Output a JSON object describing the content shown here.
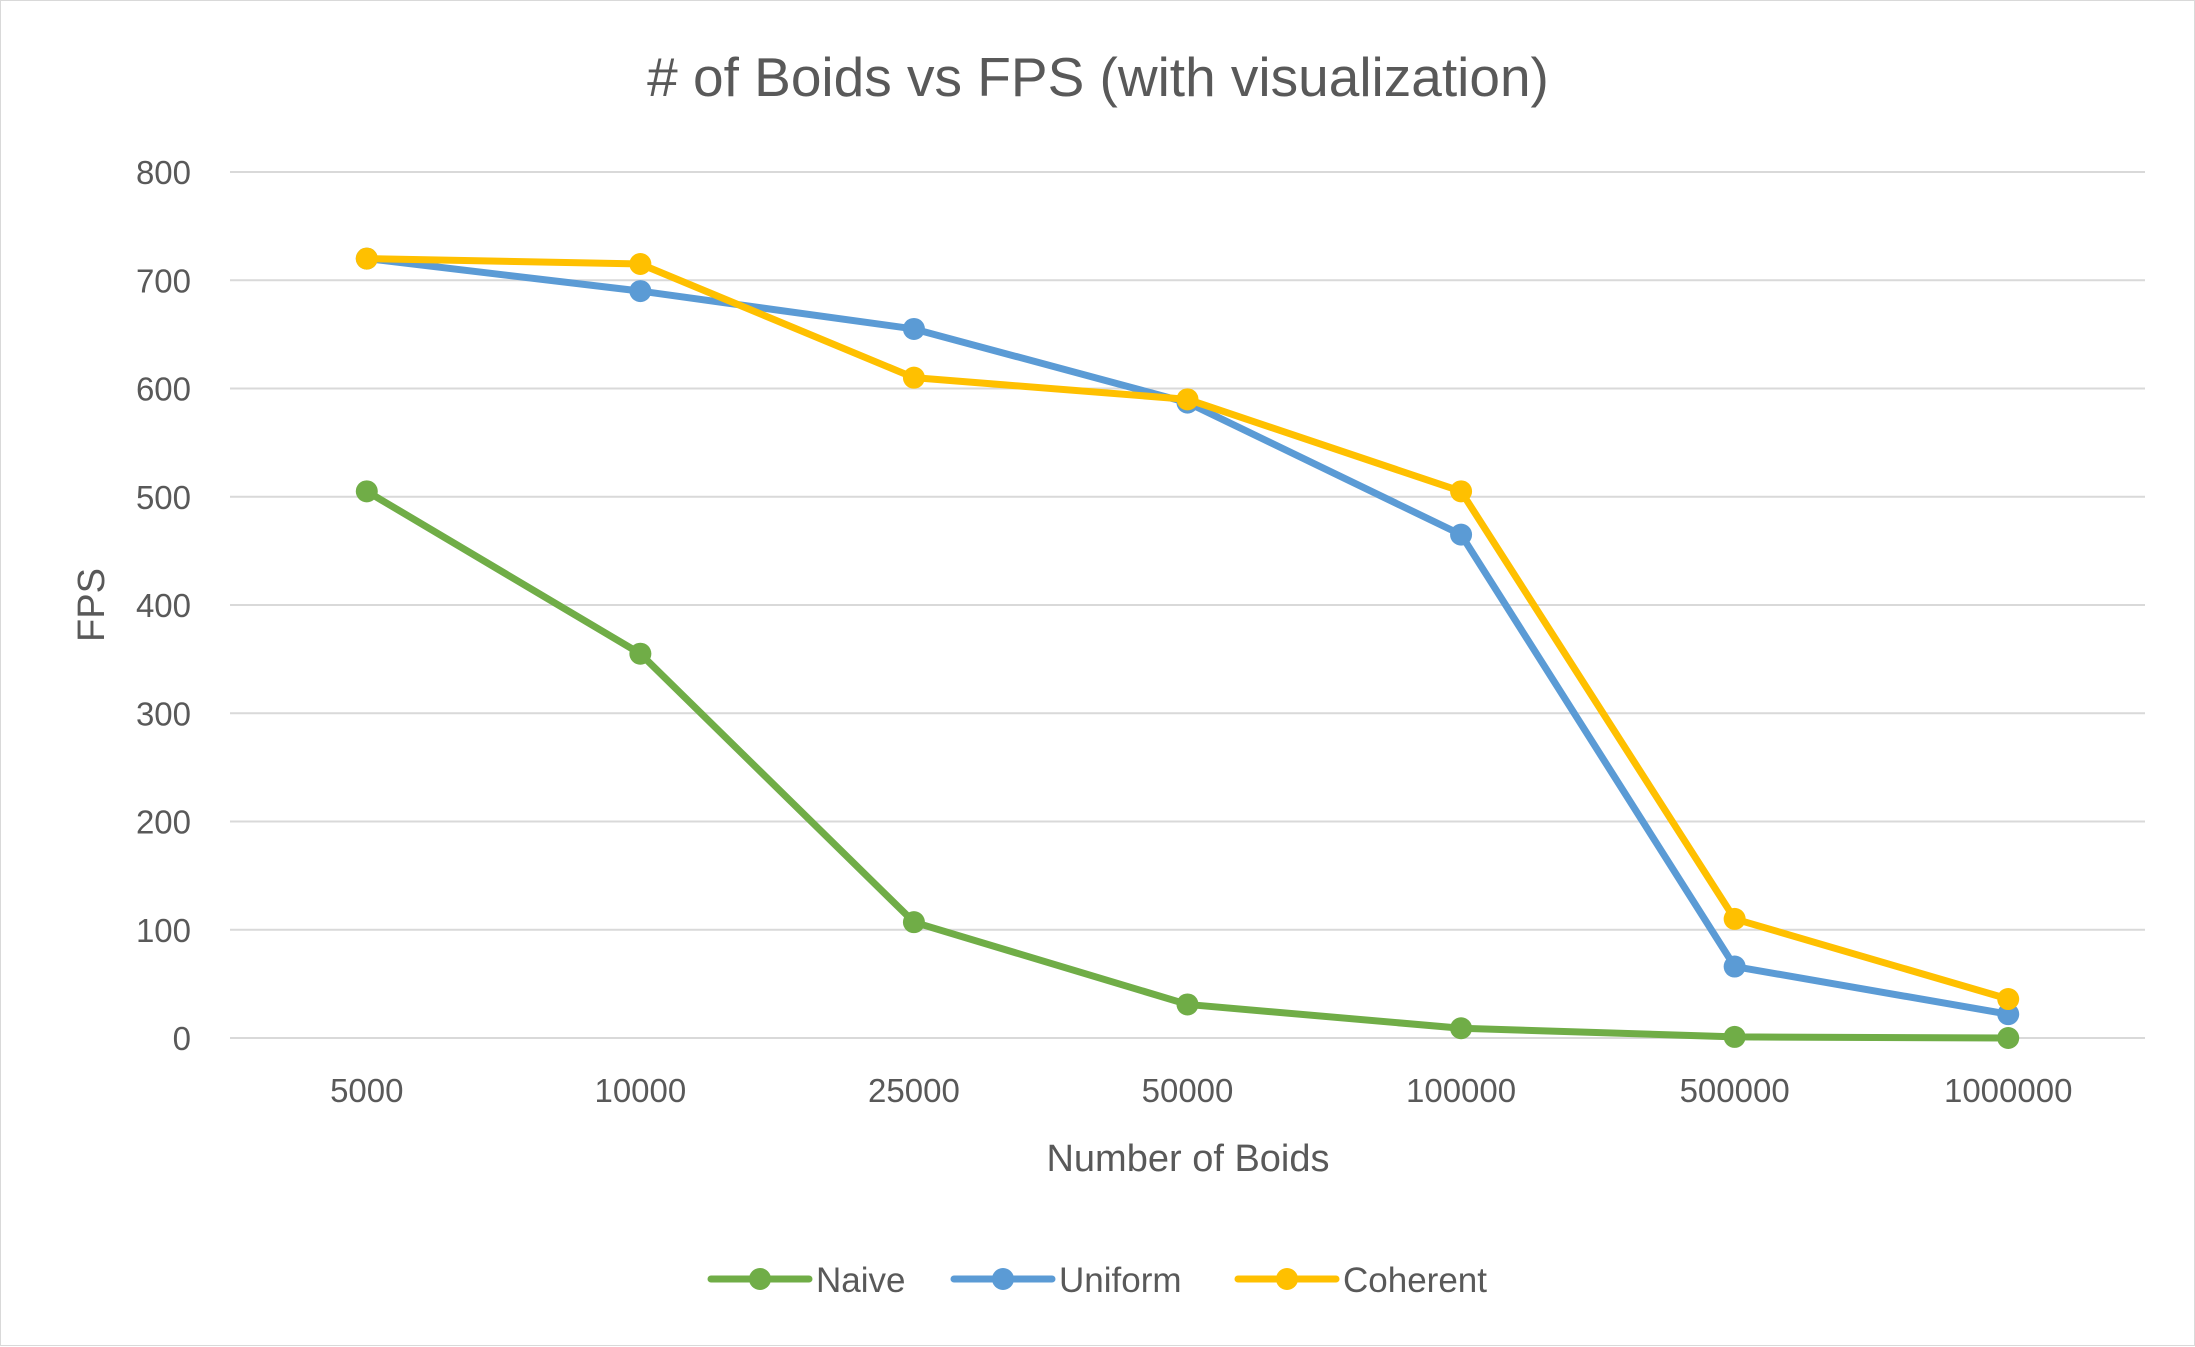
{
  "chart_data": {
    "type": "line",
    "title": "# of Boids vs FPS (with visualization)",
    "xlabel": "Number of Boids",
    "ylabel": "FPS",
    "categories": [
      "5000",
      "10000",
      "25000",
      "50000",
      "100000",
      "500000",
      "1000000"
    ],
    "ylim": [
      0,
      800
    ],
    "yticks": [
      0,
      100,
      200,
      300,
      400,
      500,
      600,
      700,
      800
    ],
    "grid": true,
    "legend": "bottom",
    "series": [
      {
        "name": "Naive",
        "color": "#70ad47",
        "values": [
          505,
          355,
          107,
          31,
          9,
          1,
          0
        ]
      },
      {
        "name": "Uniform",
        "color": "#5b9bd5",
        "values": [
          720,
          690,
          655,
          587,
          465,
          66,
          22
        ]
      },
      {
        "name": "Coherent",
        "color": "#ffc000",
        "values": [
          720,
          715,
          610,
          590,
          505,
          110,
          36
        ]
      }
    ]
  }
}
